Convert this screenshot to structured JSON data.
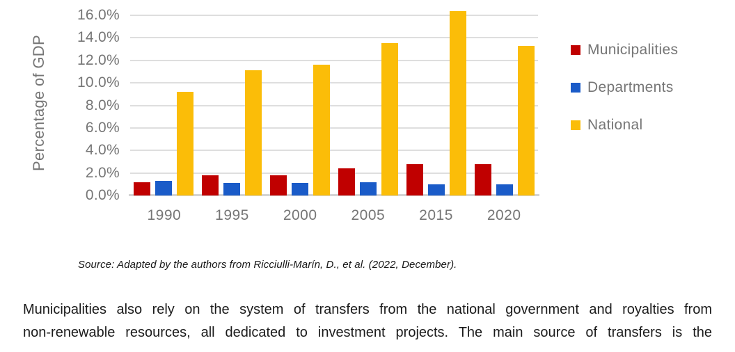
{
  "chart_data": {
    "type": "bar",
    "title": "",
    "ylabel": "Percentage of GDP",
    "xlabel": "",
    "categories": [
      "1990",
      "1995",
      "2000",
      "2005",
      "2015",
      "2020"
    ],
    "series": [
      {
        "name": "Municipalities",
        "color": "#C00000",
        "values": [
          1.2,
          1.8,
          1.8,
          2.4,
          2.8,
          2.8
        ]
      },
      {
        "name": "Departments",
        "color": "#1A5BC8",
        "values": [
          1.3,
          1.1,
          1.1,
          1.2,
          1.0,
          1.0
        ]
      },
      {
        "name": "National",
        "color": "#FBBD08",
        "values": [
          9.2,
          11.1,
          11.6,
          13.5,
          16.4,
          13.3
        ]
      }
    ],
    "ylim": [
      0,
      16
    ],
    "y_tick_step": 2,
    "y_tick_labels": [
      "16.0%",
      "14.0%",
      "12.0%",
      "10.0%",
      "8.0%",
      "6.0%",
      "4.0%",
      "2.0%",
      "0.0%"
    ],
    "grid": true,
    "legend_position": "right",
    "legend_entries": [
      "Municipalities",
      "Departments",
      "National"
    ]
  },
  "source_note": "Source: Adapted by the authors from Ricciulli-Marín, D., et al. (2022, December).",
  "body": {
    "lines": [
      "Municipalities also rely on the system of transfers from the national government and royalties from",
      "non-renewable resources, all dedicated to investment projects. The main source of transfers is the"
    ]
  },
  "colors": {
    "municipalities": "#C00000",
    "departments": "#1A5BC8",
    "national": "#FBBD08",
    "gridline": "#DEDEDE",
    "axis_text": "#767676",
    "body_text": "#1b1b1b"
  }
}
